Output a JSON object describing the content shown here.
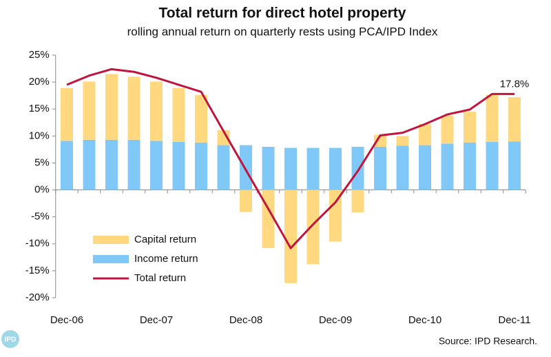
{
  "chart_data": {
    "type": "stacked_bar_line",
    "title": "Total return for direct hotel property",
    "subtitle": "rolling annual return on quarterly rests using PCA/IPD  Index",
    "source": "Source: IPD Research.",
    "logo": "IPD",
    "categories": [
      "Dec-06",
      null,
      null,
      null,
      "Dec-07",
      null,
      null,
      null,
      "Dec-08",
      null,
      null,
      null,
      "Dec-09",
      null,
      null,
      null,
      "Dec-10",
      null,
      null,
      null,
      "Dec-11"
    ],
    "series": [
      {
        "name": "Capital return",
        "kind": "bar",
        "color": "#ffd880",
        "values": [
          9.8,
          10.8,
          12.2,
          11.7,
          11.0,
          10.0,
          8.8,
          2.8,
          -4.1,
          -10.8,
          -17.3,
          -13.8,
          -9.6,
          -4.2,
          2.2,
          1.8,
          3.9,
          5.2,
          5.7,
          8.7,
          8.2
        ]
      },
      {
        "name": "Income return",
        "kind": "bar",
        "color": "#80c8f8",
        "values": [
          9.1,
          9.3,
          9.3,
          9.3,
          9.1,
          8.9,
          8.8,
          8.3,
          8.3,
          8.0,
          7.8,
          7.8,
          7.8,
          8.0,
          8.0,
          8.2,
          8.3,
          8.6,
          8.8,
          8.9,
          9.0
        ]
      },
      {
        "name": "Total return",
        "kind": "line",
        "color": "#c0143c",
        "values": [
          19.5,
          21.2,
          22.4,
          21.9,
          20.8,
          19.5,
          18.2,
          10.9,
          3.7,
          -3.5,
          -10.8,
          -6.4,
          -2.3,
          3.5,
          10.1,
          10.6,
          12.2,
          14.0,
          14.9,
          17.8,
          17.8
        ],
        "value_labels": [
          null,
          null,
          null,
          null,
          null,
          null,
          null,
          null,
          null,
          null,
          null,
          null,
          null,
          null,
          null,
          null,
          null,
          null,
          null,
          null,
          "17.8%"
        ]
      }
    ],
    "ylim": [
      -20,
      25
    ],
    "yticks": [
      {
        "value": -20,
        "label": "-20%"
      },
      {
        "value": -15,
        "label": "-15%"
      },
      {
        "value": -10,
        "label": "-10%"
      },
      {
        "value": -5,
        "label": "-5%"
      },
      {
        "value": 0,
        "label": "0%"
      },
      {
        "value": 5,
        "label": "5%"
      },
      {
        "value": 10,
        "label": "10%"
      },
      {
        "value": 15,
        "label": "15%"
      },
      {
        "value": 20,
        "label": "20%"
      },
      {
        "value": 25,
        "label": "25%"
      }
    ],
    "legend": "lower left"
  }
}
